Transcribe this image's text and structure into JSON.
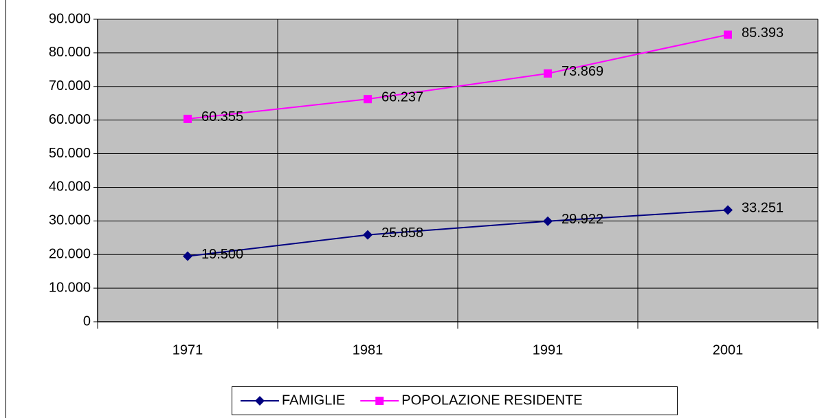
{
  "chart_data": {
    "type": "line",
    "categories": [
      "1971",
      "1981",
      "1991",
      "2001"
    ],
    "series": [
      {
        "name": "FAMIGLIE",
        "color": "#000080",
        "marker": "diamond",
        "values": [
          19500,
          25858,
          29922,
          33251
        ],
        "value_labels": [
          "19.500",
          "25.858",
          "29.922",
          "33.251"
        ]
      },
      {
        "name": "POPOLAZIONE RESIDENTE",
        "color": "#ff00ff",
        "marker": "square",
        "values": [
          60355,
          66237,
          73869,
          85393
        ],
        "value_labels": [
          "60.355",
          "66.237",
          "73.869",
          "85.393"
        ]
      }
    ],
    "ylim": [
      0,
      90000
    ],
    "yticks": [
      0,
      {
        "value": 10000,
        "label": "10.000"
      },
      {
        "value": 20000,
        "label": "20.000"
      },
      {
        "value": 30000,
        "label": "30.000"
      },
      {
        "value": 40000,
        "label": "40.000"
      },
      {
        "value": 50000,
        "label": "50.000"
      },
      {
        "value": 60000,
        "label": "60.000"
      },
      {
        "value": 70000,
        "label": "70.000"
      },
      {
        "value": 80000,
        "label": "80.000"
      },
      {
        "value": 90000,
        "label": "90.000"
      }
    ],
    "grid": true,
    "legend": "bottom"
  }
}
